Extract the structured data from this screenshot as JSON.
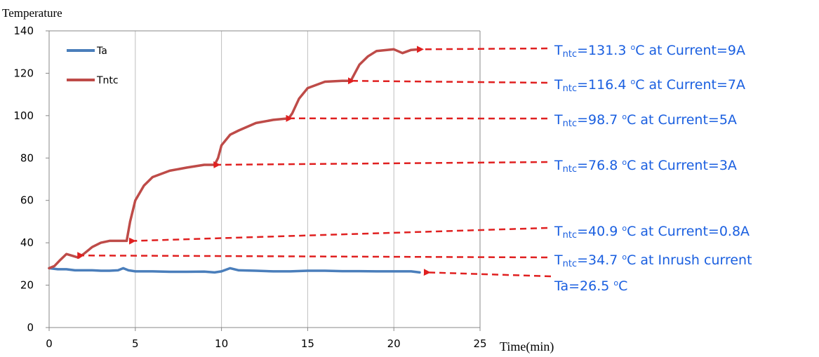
{
  "chart_data": {
    "type": "line",
    "ylabel": "Temperature",
    "xlabel": "Time(min)",
    "xlim": [
      0,
      25
    ],
    "ylim": [
      0,
      140
    ],
    "xticks": [
      0,
      5,
      10,
      15,
      20,
      25
    ],
    "yticks": [
      0,
      20,
      40,
      60,
      80,
      100,
      120,
      140
    ],
    "grid": "vertical",
    "legend_position": "top-left",
    "series": [
      {
        "name": "Ta",
        "color": "#4a7ebb",
        "x": [
          0,
          0.5,
          1,
          1.5,
          2,
          2.5,
          3,
          3.5,
          4,
          4.3,
          4.6,
          5,
          6,
          7,
          8,
          9,
          9.6,
          10,
          10.5,
          11,
          12,
          13,
          14,
          15,
          16,
          17,
          18,
          19,
          20,
          21,
          21.5
        ],
        "y": [
          28,
          27.5,
          27.5,
          27,
          27,
          27,
          26.8,
          26.8,
          27,
          28,
          27,
          26.5,
          26.5,
          26.3,
          26.3,
          26.4,
          26,
          26.5,
          28,
          27,
          26.8,
          26.5,
          26.5,
          26.8,
          26.8,
          26.6,
          26.6,
          26.5,
          26.5,
          26.5,
          26
        ]
      },
      {
        "name": "Tntc",
        "color": "#be4b48",
        "x": [
          0,
          0.3,
          0.6,
          1,
          1.3,
          1.7,
          2,
          2.5,
          3,
          3.5,
          4,
          4.5,
          4.7,
          5,
          5.5,
          6,
          7,
          8,
          9,
          9.6,
          9.8,
          10,
          10.5,
          11,
          12,
          13,
          13.9,
          14.1,
          14.5,
          15,
          16,
          17,
          17.5,
          17.8,
          18,
          18.5,
          19,
          20,
          20.5,
          21,
          21.5
        ],
        "y": [
          28,
          29,
          31.5,
          34.7,
          34,
          33,
          34.7,
          38,
          40,
          40.9,
          40.9,
          40.9,
          50,
          60,
          67,
          71,
          74,
          75.5,
          76.8,
          76.8,
          80,
          86,
          91,
          93,
          96.5,
          98,
          98.7,
          101,
          108,
          113,
          116,
          116.4,
          116.4,
          121,
          124,
          128,
          130.5,
          131.3,
          129.5,
          131,
          131.3
        ]
      }
    ],
    "annotations": [
      {
        "prefix": "T",
        "sub": "ntc",
        "value": "=131.3 ",
        "sup": "o",
        "rest": "C at Current=9A",
        "point": [
          21.5,
          131.3
        ]
      },
      {
        "prefix": "T",
        "sub": "ntc",
        "value": "=116.4 ",
        "sup": "o",
        "rest": "C at Current=7A",
        "point": [
          17.5,
          116.4
        ]
      },
      {
        "prefix": "T",
        "sub": "ntc",
        "value": "=98.7 ",
        "sup": "o",
        "rest": "C at Current=5A",
        "point": [
          13.9,
          98.7
        ]
      },
      {
        "prefix": "T",
        "sub": "ntc",
        "value": "=76.8 ",
        "sup": "o",
        "rest": "C at Current=3A",
        "point": [
          9.7,
          76.8
        ]
      },
      {
        "prefix": "T",
        "sub": "ntc",
        "value": "=40.9 ",
        "sup": "o",
        "rest": "C at Current=0.8A",
        "point": [
          4.8,
          40.9
        ]
      },
      {
        "prefix": "T",
        "sub": "ntc",
        "value": "=34.7 ",
        "sup": "o",
        "rest": "C at Inrush current",
        "point": [
          1.8,
          34
        ]
      },
      {
        "prefix": "Ta",
        "sub": "",
        "value": "=26.5 ",
        "sup": "o",
        "rest": "C",
        "point": [
          21.9,
          26
        ]
      }
    ],
    "annotation_color": "#1a5fe0",
    "arrow_color": "#e02020"
  }
}
